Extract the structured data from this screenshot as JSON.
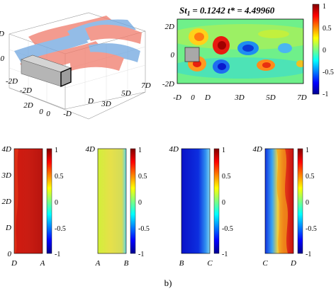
{
  "caption": "b)",
  "iso_plot": {
    "x_ticks": [
      "-D",
      "0",
      "D",
      "3D",
      "5D",
      "7D"
    ],
    "y_ticks": [
      "2D",
      "0",
      "-2D"
    ],
    "z_ticks": [
      "2D",
      "0",
      "-2D"
    ],
    "colors": {
      "positive": "#f07a6a",
      "negative": "#6fa6df",
      "body": "#b5b5b5"
    }
  },
  "contour_plot": {
    "title_st": "St",
    "title_st_sub": "1",
    "title_rest": "= 0.1242   t* = 4.49960",
    "x_ticks": [
      "-D",
      "0",
      "D",
      "3D",
      "5D",
      "7D"
    ],
    "y_ticks": [
      "2D",
      "0",
      "-2D"
    ],
    "colorbar_ticks": [
      "1",
      "0.5",
      "0",
      "-0.5",
      "-1"
    ]
  },
  "side_panels": [
    {
      "left": "D",
      "right": "A",
      "level": 0.9
    },
    {
      "left": "A",
      "right": "B",
      "level": 0.4
    },
    {
      "left": "B",
      "right": "C",
      "level": -0.75
    },
    {
      "left": "C",
      "right": "D",
      "level": 0.8
    }
  ],
  "side_panel_axis": {
    "y_ticks": [
      "4D",
      "3D",
      "2D",
      "D",
      "0"
    ],
    "colorbar_ticks": [
      "1",
      "0.5",
      "0",
      "-0.5",
      "-1"
    ]
  },
  "chart_data": {
    "type": "heatmap",
    "colorbar_range": [
      -1,
      1
    ],
    "colormap": "jet",
    "title": "St1 = 0.1242   t* = 4.49960",
    "x_ticks": [
      "-D",
      "0",
      "D",
      "3D",
      "5D",
      "7D"
    ],
    "y_ticks": [
      "2D",
      "0",
      "-2D"
    ]
  }
}
